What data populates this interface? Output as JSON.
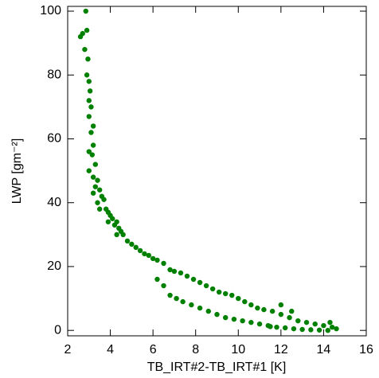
{
  "chart_data": {
    "type": "scatter",
    "x_label": "TB_IRT#2-TB_IRT#1 [K]",
    "y_label": "LWP [gm⁻²]",
    "xlim": [
      2,
      16
    ],
    "ylim": [
      -1.7,
      101.5
    ],
    "xticks": [
      2,
      4,
      6,
      8,
      10,
      12,
      14,
      16
    ],
    "yticks": [
      0,
      20,
      40,
      60,
      80,
      100
    ],
    "series": [
      {
        "color": "#008000",
        "x": [
          2.85,
          2.6,
          2.7,
          2.9,
          2.8,
          2.95,
          2.9,
          3.0,
          3.05,
          3.0,
          3.1,
          3.0,
          3.2,
          3.1,
          3.2,
          3.0,
          3.15,
          3.3,
          3.0,
          3.2,
          3.4,
          3.3,
          3.5,
          3.2,
          3.6,
          3.4,
          3.7,
          3.5,
          3.8,
          3.9,
          4.0,
          4.1,
          3.9,
          4.2,
          4.3,
          4.4,
          4.5,
          4.3,
          4.6,
          4.8,
          5.0,
          5.2,
          5.4,
          5.6,
          5.8,
          6.0,
          6.2,
          6.5,
          6.8,
          7.0,
          7.3,
          7.6,
          7.9,
          8.2,
          8.5,
          8.8,
          9.1,
          9.4,
          9.7,
          10.0,
          10.3,
          10.6,
          10.9,
          11.2,
          11.6,
          12.0,
          12.4,
          12.8,
          13.2,
          13.6,
          14.0,
          14.4,
          14.6,
          6.2,
          6.5,
          6.8,
          7.1,
          7.4,
          7.8,
          8.2,
          8.6,
          9.0,
          9.4,
          9.8,
          10.2,
          10.6,
          11.0,
          11.4,
          11.8,
          12.2,
          12.6,
          13.0,
          13.4,
          13.8,
          14.2,
          12.0,
          12.5,
          14.3,
          11.5
        ],
        "values": [
          100,
          92,
          93,
          94,
          88,
          85,
          80,
          78,
          75,
          72,
          70,
          67,
          64,
          62,
          58,
          56,
          55,
          52,
          50,
          48,
          47,
          45,
          44,
          43,
          42,
          40,
          41,
          38,
          38,
          37,
          36,
          35,
          34,
          33,
          34,
          32,
          31,
          30,
          30,
          28,
          27,
          26,
          25,
          24,
          23.5,
          22.5,
          22,
          21,
          19,
          18.5,
          18,
          17,
          16,
          15,
          14,
          13,
          12,
          11.5,
          11,
          10,
          9,
          8,
          7,
          6.5,
          6,
          5,
          4,
          3,
          2.5,
          2,
          1.5,
          1,
          0.5,
          16,
          14,
          11,
          10,
          9,
          8,
          7,
          6,
          5,
          4,
          3.5,
          3,
          2.5,
          2,
          1.5,
          1,
          0.8,
          0.5,
          0.3,
          0.2,
          0.1,
          0,
          8,
          6,
          2.5,
          1.2
        ]
      }
    ]
  }
}
